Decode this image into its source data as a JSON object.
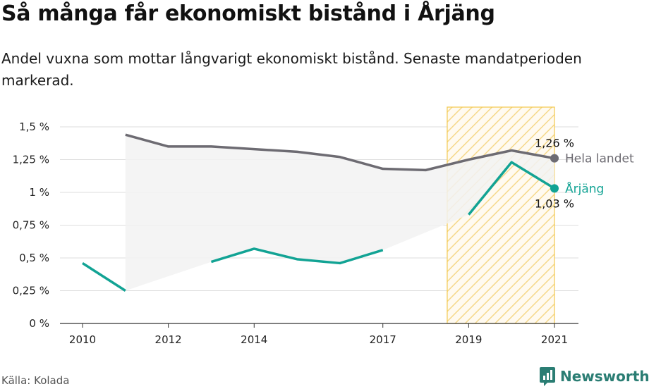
{
  "header": {
    "title": "Så många får ekonomiskt bistånd i Årjäng",
    "subtitle": "Andel vuxna som mottar långvarigt ekonomiskt bistånd. Senaste mandatperioden markerad."
  },
  "footer": {
    "source": "Källa: Kolada",
    "brand": "Newsworthy"
  },
  "colors": {
    "national": "#6d6b72",
    "local": "#12a394",
    "highlight": "#f2c94c",
    "area": "#f2f2f2",
    "grid": "#dddddd",
    "brand": "#2a7d73"
  },
  "chart_data": {
    "type": "line",
    "x_ticks": [
      2010,
      2012,
      2014,
      2017,
      2019,
      2021
    ],
    "x_tick_labels": [
      "2010",
      "2012",
      "2014",
      "2017",
      "2019",
      "2021"
    ],
    "xlim": [
      2010,
      2021
    ],
    "ylim": [
      0,
      1.5
    ],
    "y_ticks": [
      0,
      0.25,
      0.5,
      0.75,
      1,
      1.25,
      1.5
    ],
    "y_tick_labels": [
      "0 %",
      "0,25 %",
      "0,5 %",
      "0,75 %",
      "1 %",
      "1,25 %",
      "1,5 %"
    ],
    "highlight_period": [
      2018.5,
      2021
    ],
    "series": [
      {
        "name": "Hela landet",
        "x": [
          2011,
          2012,
          2013,
          2014,
          2015,
          2016,
          2017,
          2018,
          2019,
          2020,
          2021
        ],
        "values": [
          1.44,
          1.35,
          1.35,
          1.33,
          1.31,
          1.27,
          1.18,
          1.17,
          1.25,
          1.32,
          1.26
        ],
        "end_label": "1,26 %"
      },
      {
        "name": "Årjäng",
        "x": [
          2010,
          2011,
          2012,
          2013,
          2014,
          2015,
          2016,
          2017,
          2018,
          2019,
          2020,
          2021
        ],
        "values": [
          0.46,
          0.25,
          null,
          0.47,
          0.57,
          0.49,
          0.46,
          0.56,
          null,
          0.83,
          1.23,
          1.03
        ],
        "end_label": "1,03 %"
      }
    ]
  }
}
